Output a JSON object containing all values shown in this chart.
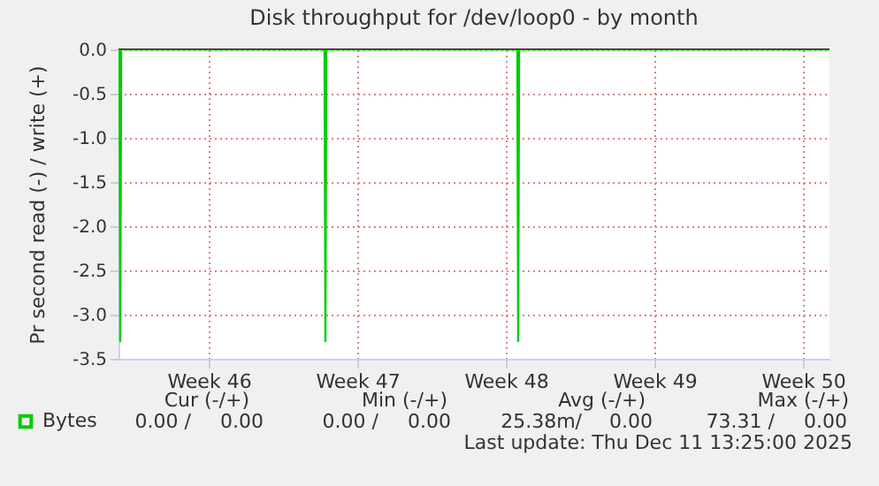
{
  "chart_data": {
    "type": "line",
    "title": "Disk throughput for /dev/loop0 - by month",
    "ylabel": "Pr second read (-) / write (+)",
    "x": [
      "2025-11-09T07:00",
      "2025-11-09T08:00",
      "2025-11-09T09:00",
      "2025-11-18T23:00",
      "2025-11-19T00:00",
      "2025-11-19T01:00",
      "2025-11-28T01:00",
      "2025-11-28T02:00",
      "2025-11-28T03:00",
      "2025-12-12T18:00"
    ],
    "series": [
      {
        "name": "Bytes",
        "color": "#00cc00",
        "values": [
          0,
          -3.3,
          0,
          0,
          -3.3,
          0,
          0,
          -3.3,
          0,
          0
        ]
      }
    ],
    "xlim": [
      "2025-11-09T06:00",
      "2025-12-12T18:00"
    ],
    "xticks": [
      {
        "value": "2025-11-13T12:00",
        "label": "Week 46"
      },
      {
        "value": "2025-11-20T12:00",
        "label": "Week 47"
      },
      {
        "value": "2025-11-27T12:00",
        "label": "Week 48"
      },
      {
        "value": "2025-12-04T12:00",
        "label": "Week 49"
      },
      {
        "value": "2025-12-11T12:00",
        "label": "Week 50"
      }
    ],
    "ylim": [
      -3.5,
      0
    ],
    "yticks": [
      {
        "value": 0,
        "label": "0.0"
      },
      {
        "value": -0.5,
        "label": "-0.5"
      },
      {
        "value": -1,
        "label": "-1.0"
      },
      {
        "value": -1.5,
        "label": "-1.5"
      },
      {
        "value": -2,
        "label": "-2.0"
      },
      {
        "value": -2.5,
        "label": "-2.5"
      },
      {
        "value": -3,
        "label": "-3.0"
      },
      {
        "value": -3.5,
        "label": "-3.5"
      }
    ],
    "grid": true,
    "legend": "bottom left",
    "annotations": [
      "Cur (-/+)",
      "Min (-/+)",
      "Avg (-/+)",
      "Max (-/+)",
      "0.00 /",
      "0.00",
      "0.00 /",
      "0.00",
      "25.38m/",
      "0.00",
      "73.31 /",
      "0.00",
      "Last update: Thu Dec 11 13:25:00 2025"
    ]
  }
}
